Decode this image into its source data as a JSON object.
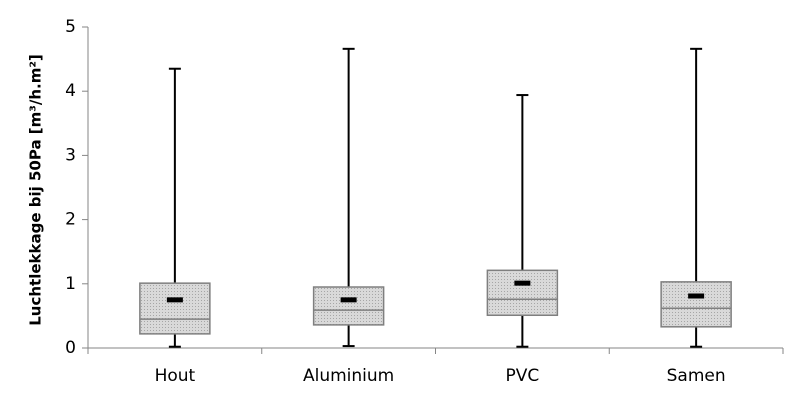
{
  "chart_data": {
    "type": "box",
    "y_label": "Luchtlekkage bij 50Pa [m³/h.m²]",
    "categories": [
      "Hout",
      "Aluminium",
      "PVC",
      "Samen"
    ],
    "min": [
      0.02,
      0.03,
      0.02,
      0.02
    ],
    "q1": [
      0.22,
      0.36,
      0.51,
      0.33
    ],
    "median": [
      0.45,
      0.59,
      0.76,
      0.62
    ],
    "q3": [
      1.01,
      0.95,
      1.21,
      1.03
    ],
    "max": [
      4.35,
      4.66,
      3.94,
      4.66
    ],
    "mean": [
      0.75,
      0.75,
      1.01,
      0.81
    ],
    "color": "#d9d9d9",
    "ylim": [
      0,
      5
    ],
    "yticks": [
      0,
      1,
      2,
      3,
      4,
      5
    ],
    "grid": false
  }
}
